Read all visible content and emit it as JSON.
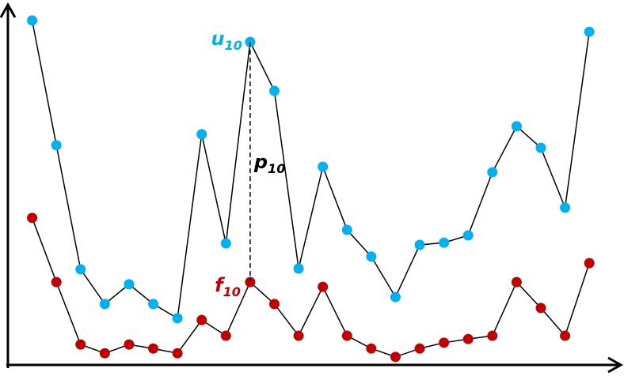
{
  "chart_data": {
    "type": "line",
    "x": [
      1,
      2,
      3,
      4,
      5,
      6,
      7,
      8,
      9,
      10,
      11,
      12,
      13,
      14,
      15,
      16,
      17,
      18,
      19,
      20,
      21,
      22,
      23,
      24
    ],
    "xlim": [
      0,
      25.4
    ],
    "ylim": [
      0,
      100
    ],
    "series": [
      {
        "color": "#00b0f0",
        "values": [
          94.4,
          60.2,
          26.2,
          16.7,
          22.1,
          16.7,
          12.8,
          63.2,
          33.3,
          88.5,
          75.1,
          26.4,
          54.3,
          37.0,
          29.7,
          18.6,
          32.9,
          33.5,
          35.5,
          52.8,
          65.4,
          59.5,
          43.1,
          91.3
        ]
      },
      {
        "color": "#c00000",
        "values": [
          40.3,
          22.7,
          5.6,
          3.2,
          5.6,
          4.5,
          3.2,
          12.3,
          8.0,
          22.7,
          16.7,
          8.0,
          21.4,
          8.0,
          4.5,
          2.2,
          4.5,
          6.1,
          7.1,
          8.0,
          22.7,
          15.6,
          8.0,
          27.9
        ]
      }
    ],
    "annotations": [
      {
        "text": "u",
        "subscript": "10",
        "color": "#00b0f0"
      },
      {
        "text": "f",
        "subscript": "10",
        "color": "#c00000"
      },
      {
        "text": "p",
        "subscript": "10",
        "color": "#000000"
      }
    ]
  }
}
